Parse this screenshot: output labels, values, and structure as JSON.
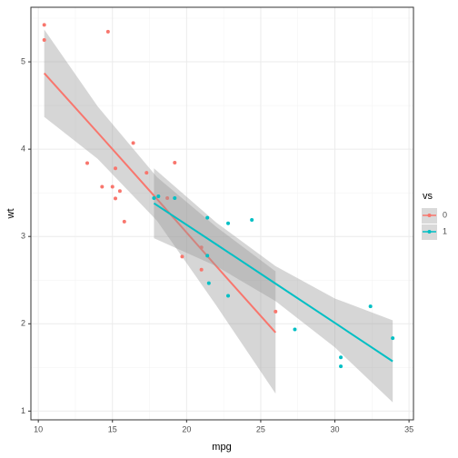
{
  "chart_data": {
    "type": "scatter",
    "x_label": "mpg",
    "y_label": "wt",
    "legend_title": "vs",
    "xlim": [
      9.5,
      35.3
    ],
    "ylim": [
      0.9,
      5.625
    ],
    "xticks": [
      10,
      15,
      20,
      25,
      30,
      35
    ],
    "yticks": [
      1,
      2,
      3,
      4,
      5
    ],
    "x_minor": [
      12.5,
      17.5,
      22.5,
      27.5,
      32.5
    ],
    "y_minor": [
      1.5,
      2.5,
      3.5,
      4.5,
      5.5
    ],
    "grid": true,
    "legend_position": "right",
    "band_color": "#999999",
    "series": [
      {
        "name": "0",
        "color": "#F8766D",
        "x": [
          21.0,
          21.0,
          18.7,
          14.3,
          16.4,
          17.3,
          15.2,
          10.4,
          10.4,
          14.7,
          15.5,
          15.2,
          13.3,
          19.2,
          26.0,
          15.8,
          19.7,
          15.0
        ],
        "values": [
          2.62,
          2.875,
          3.44,
          3.57,
          4.07,
          3.73,
          3.78,
          5.25,
          5.424,
          5.345,
          3.52,
          3.435,
          3.84,
          3.845,
          2.14,
          3.17,
          2.77,
          3.57
        ],
        "smooth": {
          "x": [
            10.4,
            14,
            18,
            22,
            26
          ],
          "fit": [
            4.87,
            4.19,
            3.43,
            2.66,
            1.9
          ],
          "lower": [
            4.37,
            3.89,
            3.18,
            2.21,
            1.2
          ],
          "upper": [
            5.37,
            4.49,
            3.68,
            3.11,
            2.6
          ]
        }
      },
      {
        "name": "1",
        "color": "#00BFC4",
        "x": [
          22.8,
          21.4,
          18.1,
          24.4,
          22.8,
          19.2,
          17.8,
          32.4,
          30.4,
          33.9,
          21.5,
          27.3,
          30.4,
          21.4
        ],
        "values": [
          2.32,
          3.215,
          3.46,
          3.19,
          3.15,
          3.44,
          3.44,
          2.2,
          1.615,
          1.835,
          2.465,
          1.935,
          1.513,
          2.78
        ],
        "smooth": {
          "x": [
            17.8,
            22,
            26,
            30,
            33.9
          ],
          "fit": [
            3.38,
            2.91,
            2.46,
            2.01,
            1.57
          ],
          "lower": [
            2.98,
            2.66,
            2.26,
            1.73,
            1.1
          ],
          "upper": [
            3.78,
            3.16,
            2.66,
            2.29,
            2.04
          ]
        }
      }
    ]
  }
}
